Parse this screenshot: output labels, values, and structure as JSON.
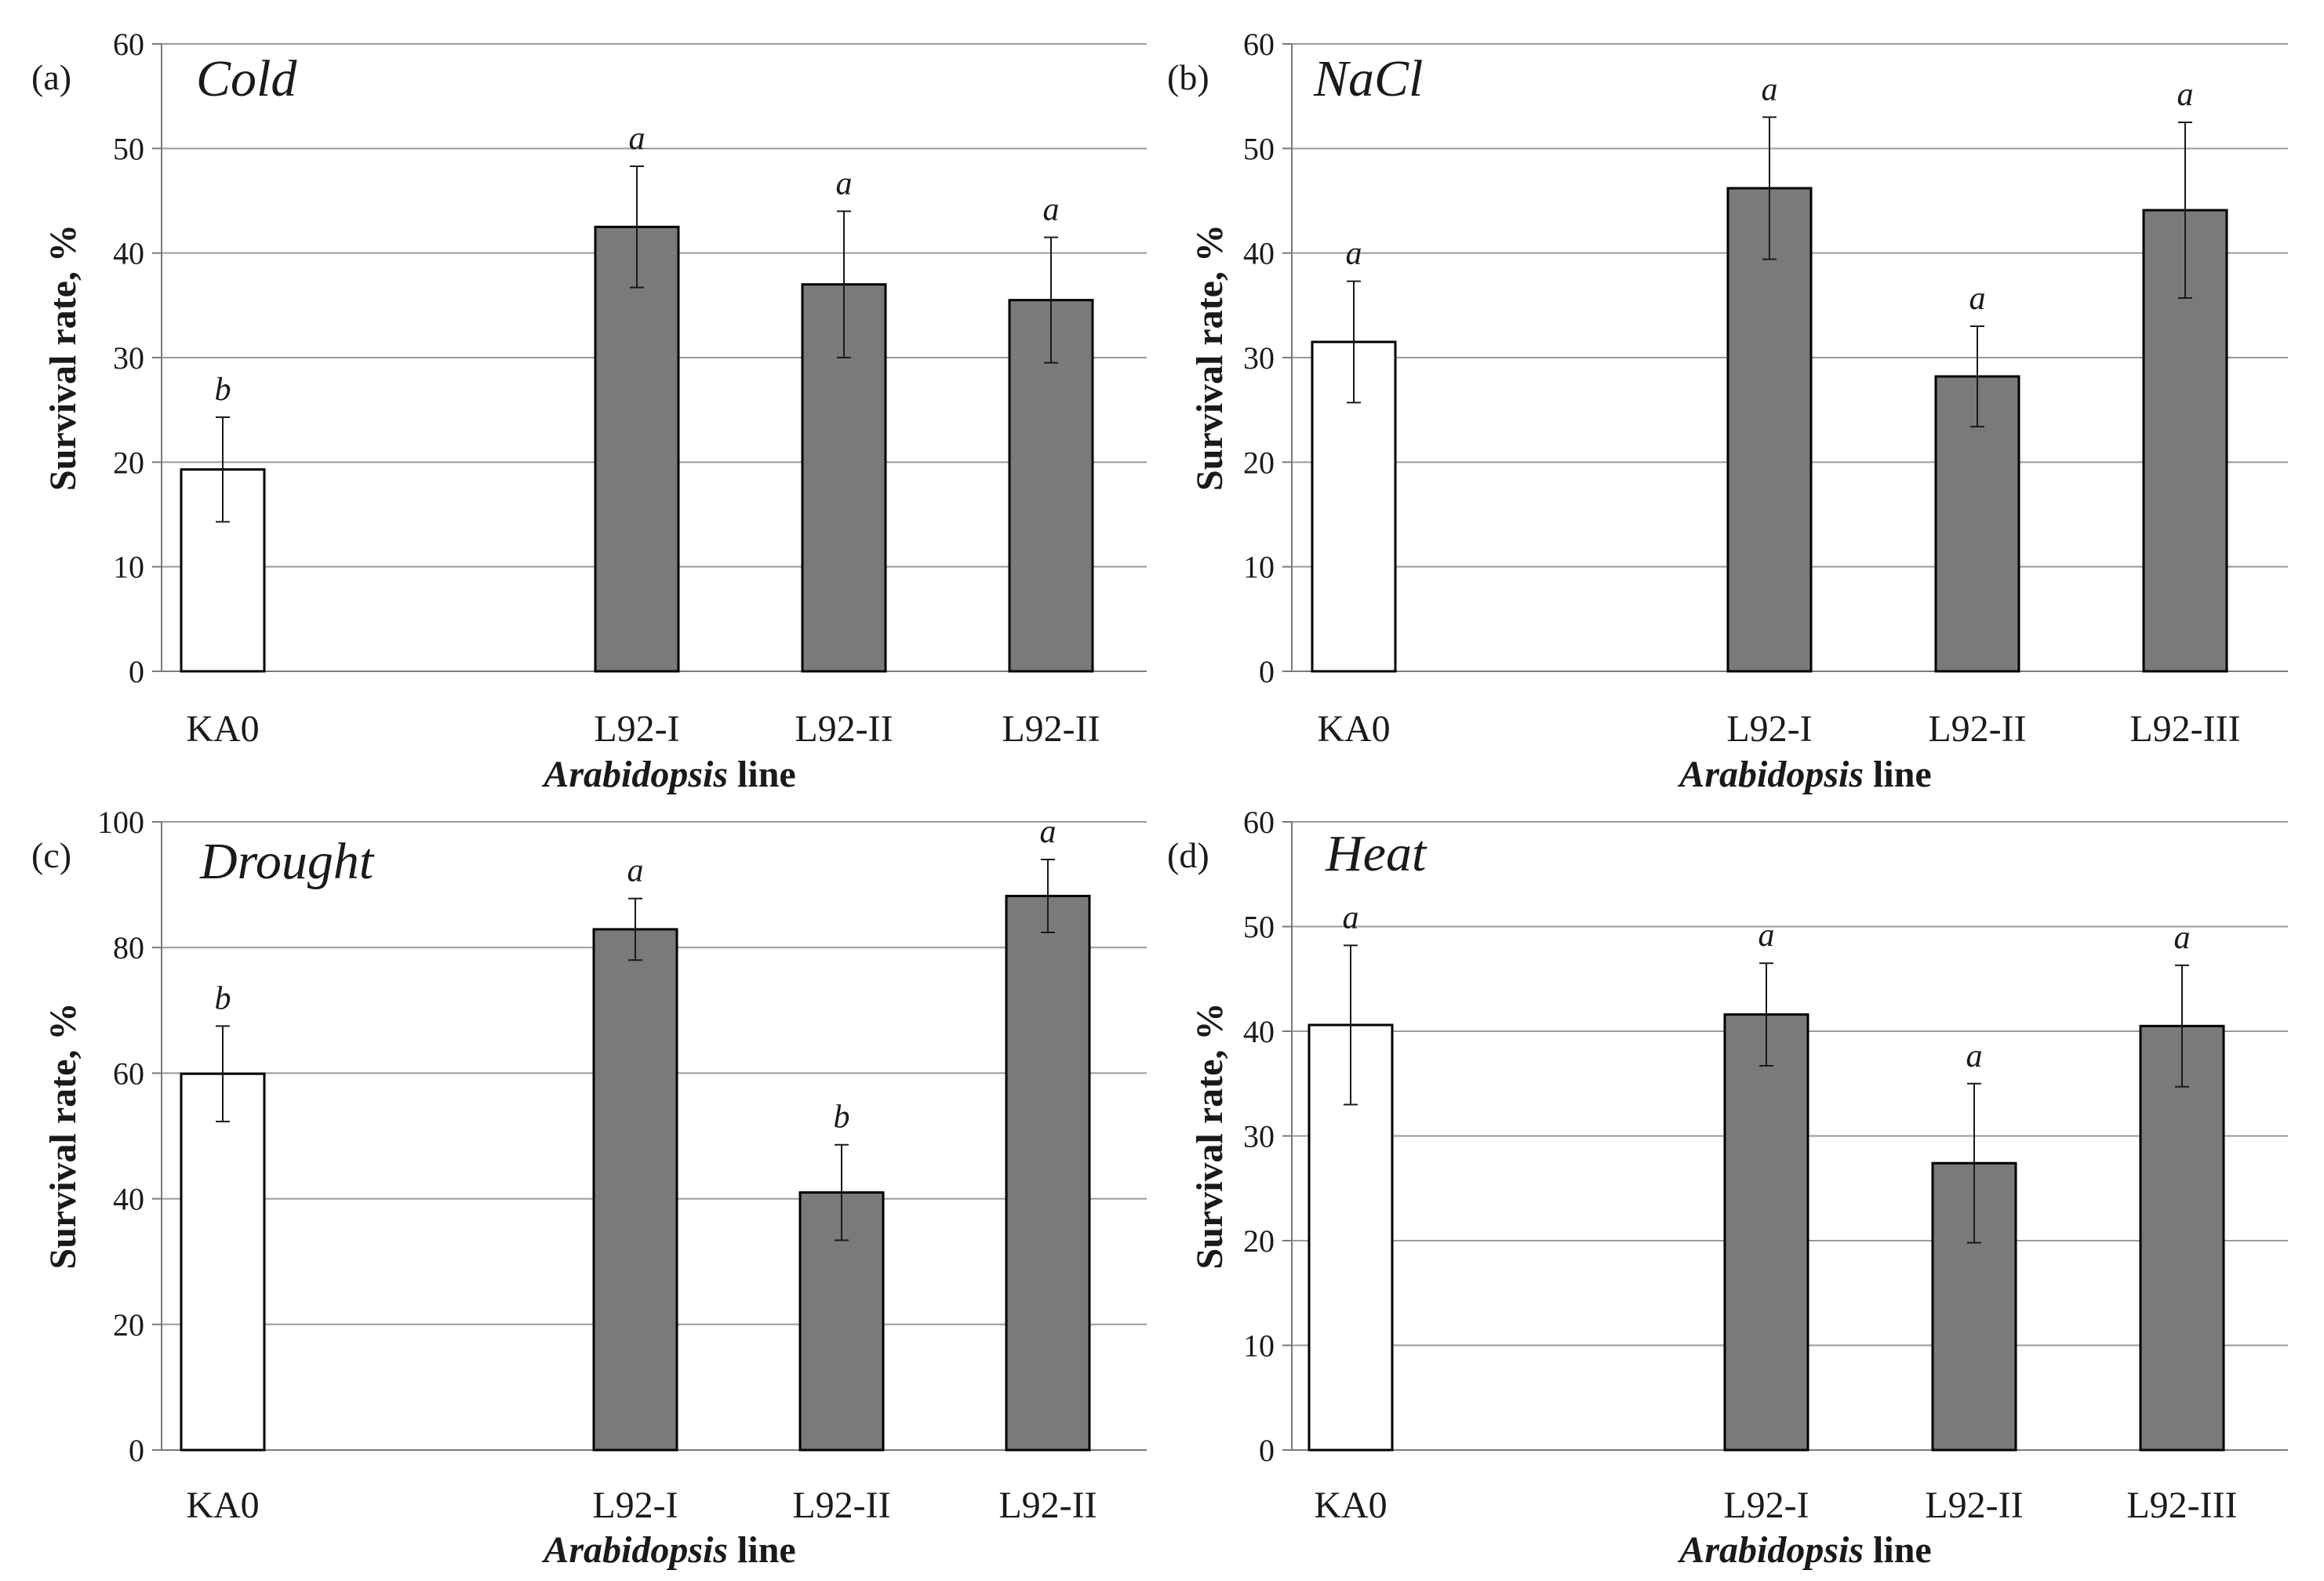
{
  "chart_data": [
    {
      "type": "bar",
      "panel": "(a)",
      "title": "Cold",
      "xlabel_italic": "Arabidopsis",
      "xlabel_rest": " line",
      "ylabel": "Survival rate, %",
      "ylim": [
        0,
        60
      ],
      "yticks": [
        0,
        10,
        20,
        30,
        40,
        50,
        60
      ],
      "categories": [
        "KA0",
        "L92-I",
        "L92-II",
        "L92-II"
      ],
      "values": [
        19.3,
        42.5,
        37.0,
        35.5
      ],
      "errors": [
        5.0,
        5.8,
        7.0,
        6.0
      ],
      "significance": [
        "b",
        "a",
        "a",
        "a"
      ],
      "colors": [
        "#ffffff",
        "#7a7a7a",
        "#7a7a7a",
        "#7a7a7a"
      ]
    },
    {
      "type": "bar",
      "panel": "(b)",
      "title": "NaCl",
      "xlabel_italic": "Arabidopsis",
      "xlabel_rest": " line",
      "ylabel": "Survival rate, %",
      "ylim": [
        0,
        60
      ],
      "yticks": [
        0,
        10,
        20,
        30,
        40,
        50,
        60
      ],
      "categories": [
        "KA0",
        "L92-I",
        "L92-II",
        "L92-III"
      ],
      "values": [
        31.5,
        46.2,
        28.2,
        44.1
      ],
      "errors": [
        5.8,
        6.8,
        4.8,
        8.4
      ],
      "significance": [
        "a",
        "a",
        "a",
        "a"
      ],
      "colors": [
        "#ffffff",
        "#7a7a7a",
        "#7a7a7a",
        "#7a7a7a"
      ]
    },
    {
      "type": "bar",
      "panel": "(c)",
      "title": "Drought",
      "xlabel_italic": "Arabidopsis",
      "xlabel_rest": " line",
      "ylabel": "Survival rate, %",
      "ylim": [
        0,
        100
      ],
      "yticks": [
        0,
        20,
        40,
        60,
        80,
        100
      ],
      "categories": [
        "KA0",
        "L92-I",
        "L92-II",
        "L92-II"
      ],
      "values": [
        59.9,
        82.9,
        41.0,
        88.2
      ],
      "errors": [
        7.6,
        4.9,
        7.6,
        5.8
      ],
      "significance": [
        "b",
        "a",
        "b",
        "a"
      ],
      "colors": [
        "#ffffff",
        "#7a7a7a",
        "#7a7a7a",
        "#7a7a7a"
      ]
    },
    {
      "type": "bar",
      "panel": "(d)",
      "title": "Heat",
      "xlabel_italic": "Arabidopsis",
      "xlabel_rest": " line",
      "ylabel": "Survival rate, %",
      "ylim": [
        0,
        60
      ],
      "yticks": [
        0,
        10,
        20,
        30,
        40,
        50,
        60
      ],
      "categories": [
        "KA0",
        "L92-I",
        "L92-II",
        "L92-III"
      ],
      "values": [
        40.6,
        41.6,
        27.4,
        40.5
      ],
      "errors": [
        7.6,
        4.9,
        7.6,
        5.8
      ],
      "significance": [
        "a",
        "a",
        "a",
        "a"
      ],
      "colors": [
        "#ffffff",
        "#7a7a7a",
        "#7a7a7a",
        "#7a7a7a"
      ]
    }
  ]
}
